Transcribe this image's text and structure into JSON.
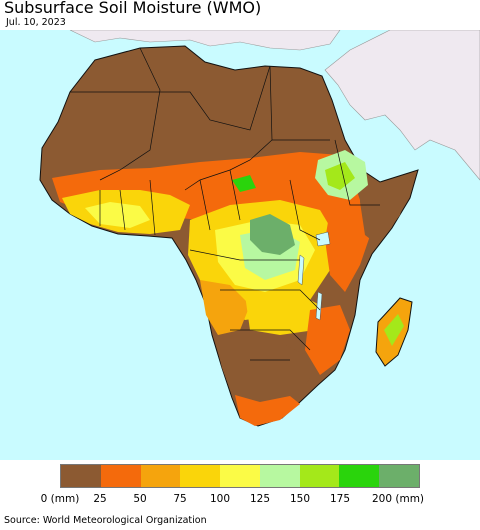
{
  "title": "Subsurface Soil Moisture (WMO)",
  "date": "Jul. 10, 2023",
  "legend": {
    "colors": [
      "#8c5a32",
      "#f46a0c",
      "#f5a40d",
      "#fad50a",
      "#fbfb46",
      "#b7f8a0",
      "#a4e81a",
      "#2ad40c",
      "#6caf6a"
    ],
    "labels": [
      "0 (mm)",
      "25",
      "50",
      "75",
      "100",
      "125",
      "150",
      "175",
      "200 (mm)"
    ]
  },
  "source": "Source: World Meteorological Organization",
  "colors": {
    "ocean": "#c9fbff",
    "no_data_land": "#efe9f0",
    "border": "#111111"
  }
}
